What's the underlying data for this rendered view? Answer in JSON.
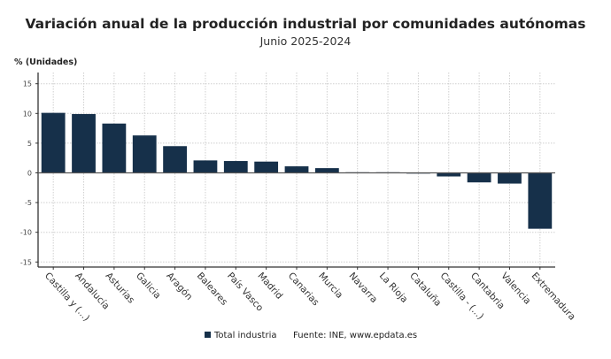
{
  "chart_data": {
    "type": "bar",
    "title": "Variación anual de la producción industrial por comunidades autónomas",
    "subtitle": "Junio 2025-2024",
    "ylabel": "% (Unidades)",
    "xlabel": "",
    "ylim": [
      -16,
      17
    ],
    "yticks": [
      15,
      10,
      5,
      0,
      -5,
      -10,
      -15
    ],
    "grid": true,
    "legend_position": "bottom",
    "categories": [
      "Castilla y (...)",
      "Andalucía",
      "Asturias",
      "Galicia",
      "Aragón",
      "Baleares",
      "País Vasco",
      "Madrid",
      "Canarias",
      "Murcia",
      "Navarra",
      "La Rioja",
      "Cataluña",
      "Castilla - (...)",
      "Cantabria",
      "Valencia",
      "Extremadura"
    ],
    "series": [
      {
        "name": "Total industria",
        "color": "#16304a",
        "values": [
          10.1,
          9.9,
          8.3,
          6.3,
          4.5,
          2.1,
          2.0,
          1.9,
          1.1,
          0.8,
          0.1,
          0.1,
          -0.1,
          -0.6,
          -1.6,
          -1.8,
          -9.4
        ]
      }
    ],
    "source": "Fuente: INE, www.epdata.es"
  }
}
